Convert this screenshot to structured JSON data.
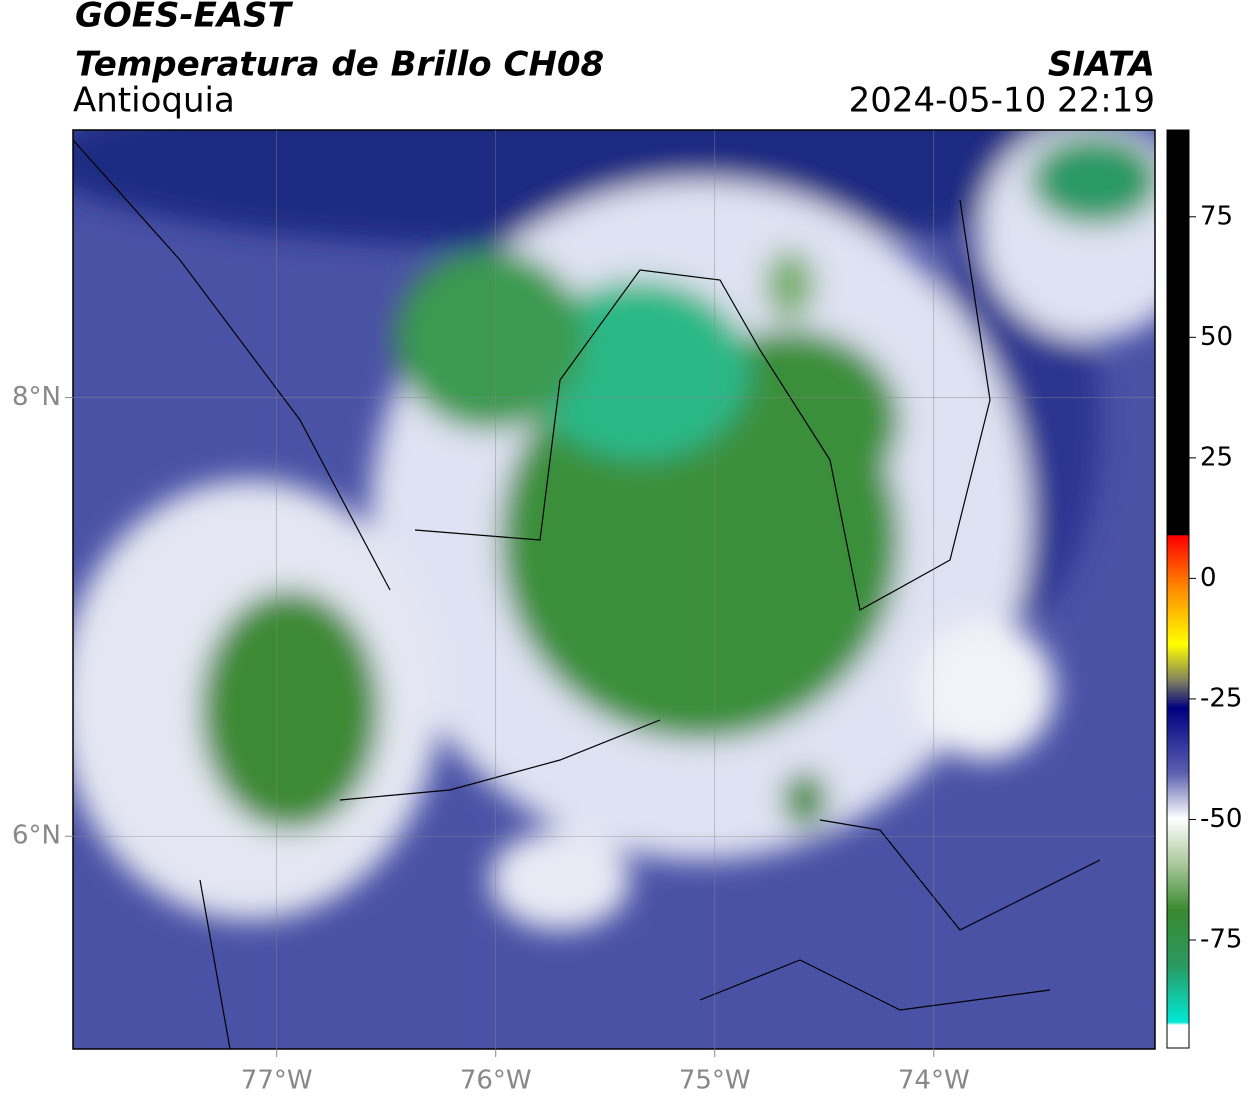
{
  "header": {
    "title": "GOES-EAST",
    "subtitle": "Temperatura de Brillo CH08",
    "region": "Antioquia",
    "source": "SIATA",
    "datetime": "2024-05-10 22:19"
  },
  "map": {
    "xlim": [
      -77.93,
      -72.99
    ],
    "ylim": [
      5.03,
      9.22
    ],
    "xticks": [
      {
        "value": -77,
        "label": "77°W"
      },
      {
        "value": -76,
        "label": "76°W"
      },
      {
        "value": -75,
        "label": "75°W"
      },
      {
        "value": -74,
        "label": "74°W"
      }
    ],
    "yticks": [
      {
        "value": 8,
        "label": "8°N"
      },
      {
        "value": 6,
        "label": "6°N"
      }
    ]
  },
  "colorbar": {
    "lim": [
      -97.4,
      93
    ],
    "ticks": [
      75,
      50,
      25,
      0,
      -25,
      -50,
      -75
    ]
  }
}
